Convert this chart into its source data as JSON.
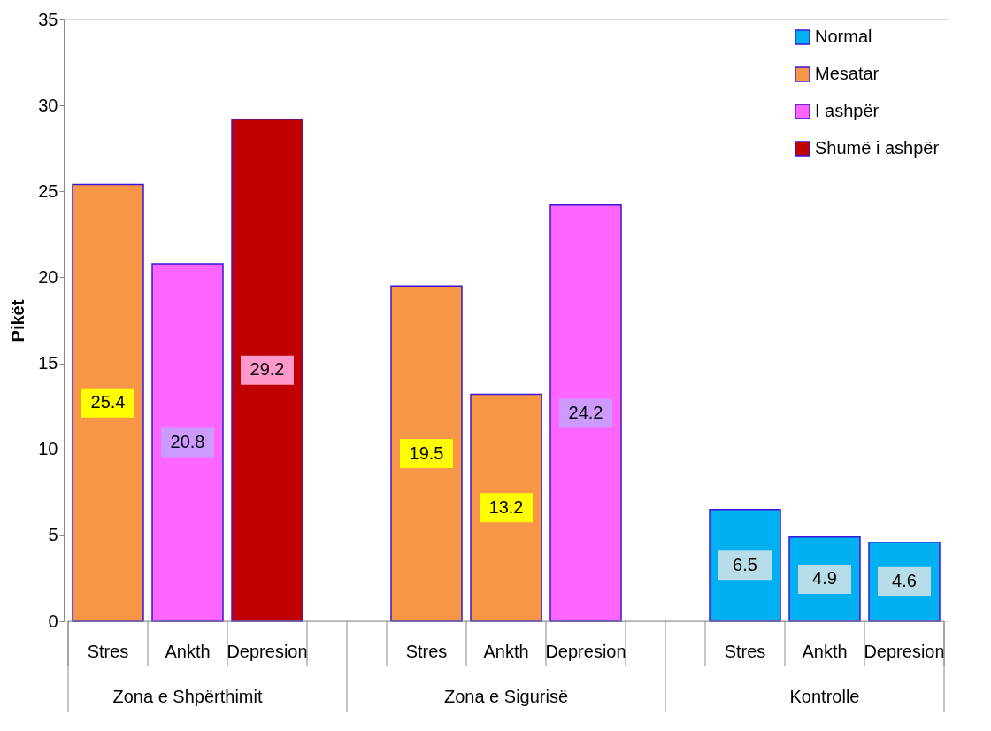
{
  "chart_data": {
    "type": "bar",
    "ylabel": "Pikët",
    "categories": [
      "Stres",
      "Ankth",
      "Depresion",
      "Stres",
      "Ankth",
      "Depresion",
      "Stres",
      "Ankth",
      "Depresion"
    ],
    "annotations": [
      "Zona e Shpërthimit",
      "Zona e Sigurisë",
      "Kontrolle"
    ],
    "series": [
      {
        "name": "Normal",
        "color": "#00b0f0",
        "values": [
          null,
          null,
          null,
          null,
          null,
          null,
          6.5,
          4.9,
          4.6
        ]
      },
      {
        "name": "Mesatar",
        "color": "#f79646",
        "values": [
          25.4,
          null,
          null,
          19.5,
          13.2,
          null,
          null,
          null,
          null
        ]
      },
      {
        "name": "I ashpër",
        "color": "#ff66ff",
        "values": [
          null,
          20.8,
          null,
          null,
          null,
          24.2,
          null,
          null,
          null
        ]
      },
      {
        "name": "Shumë i ashpër",
        "color": "#c00000",
        "values": [
          null,
          null,
          29.2,
          null,
          null,
          null,
          null,
          null,
          null
        ]
      }
    ],
    "ylim": [
      0,
      35
    ],
    "yticks": [
      0,
      5,
      10,
      15,
      20,
      25,
      30,
      35
    ],
    "grid": false,
    "legend": "top right",
    "data_labels": true
  }
}
